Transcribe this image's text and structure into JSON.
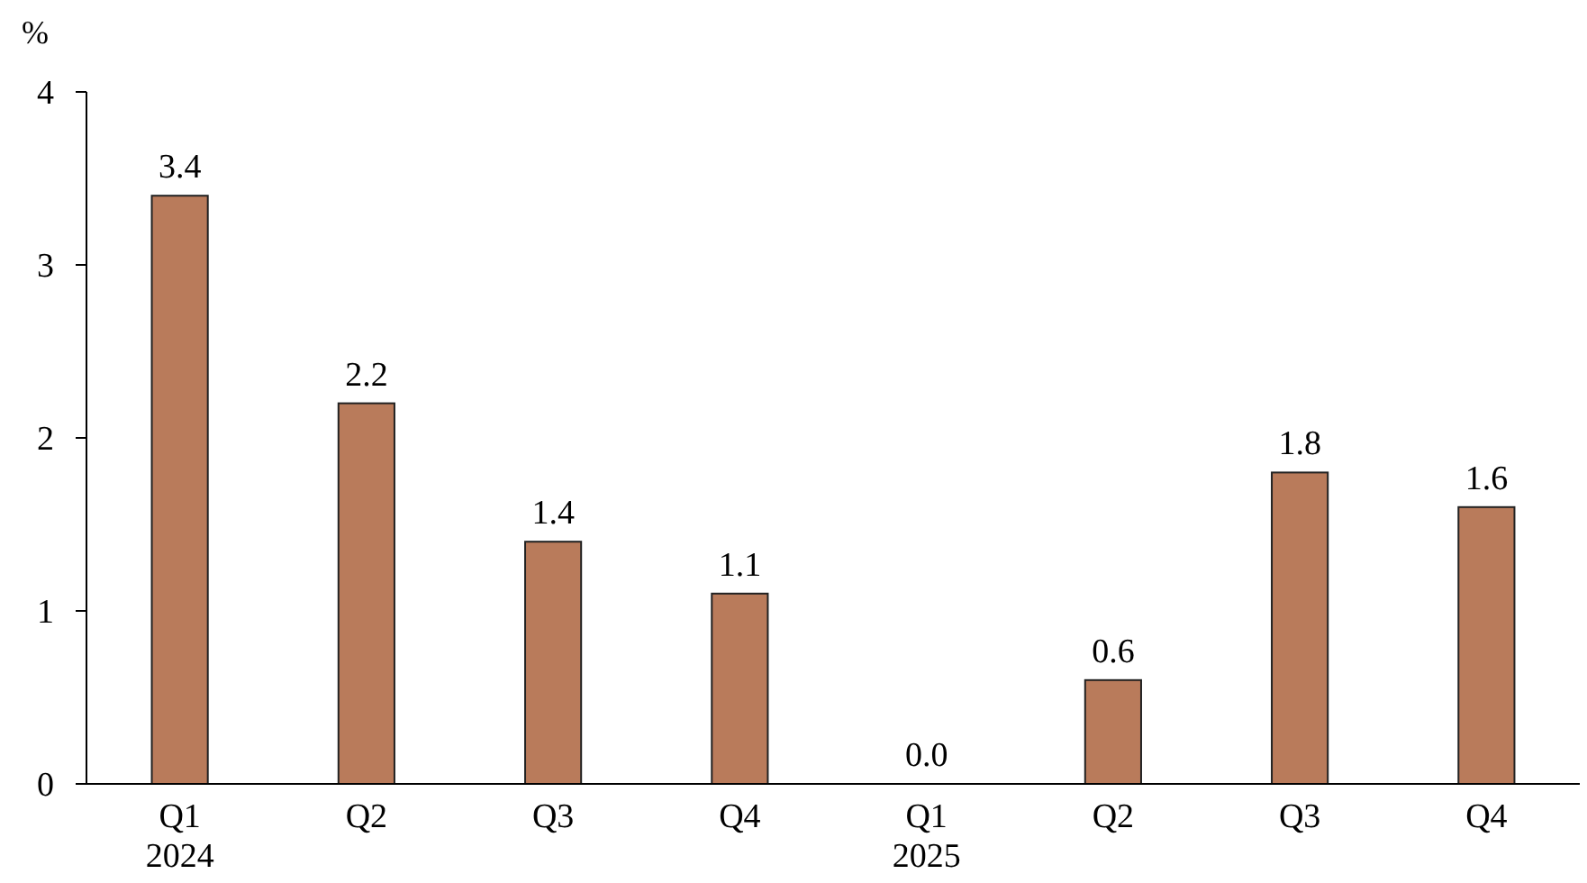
{
  "chart_data": {
    "type": "bar",
    "ylabel": "%",
    "categories": [
      "Q1\n2024",
      "Q2",
      "Q3",
      "Q4",
      "Q1\n2025",
      "Q2",
      "Q3",
      "Q4"
    ],
    "values": [
      3.4,
      2.2,
      1.4,
      1.1,
      0.0,
      0.6,
      1.8,
      1.6
    ],
    "value_labels": [
      "3.4",
      "2.2",
      "1.4",
      "1.1",
      "0.0",
      "0.6",
      "1.8",
      "1.6"
    ],
    "color": "#b97b5b",
    "ylim": [
      0,
      4
    ],
    "yticks": [
      0,
      1,
      2,
      3,
      4
    ],
    "grid": false
  }
}
